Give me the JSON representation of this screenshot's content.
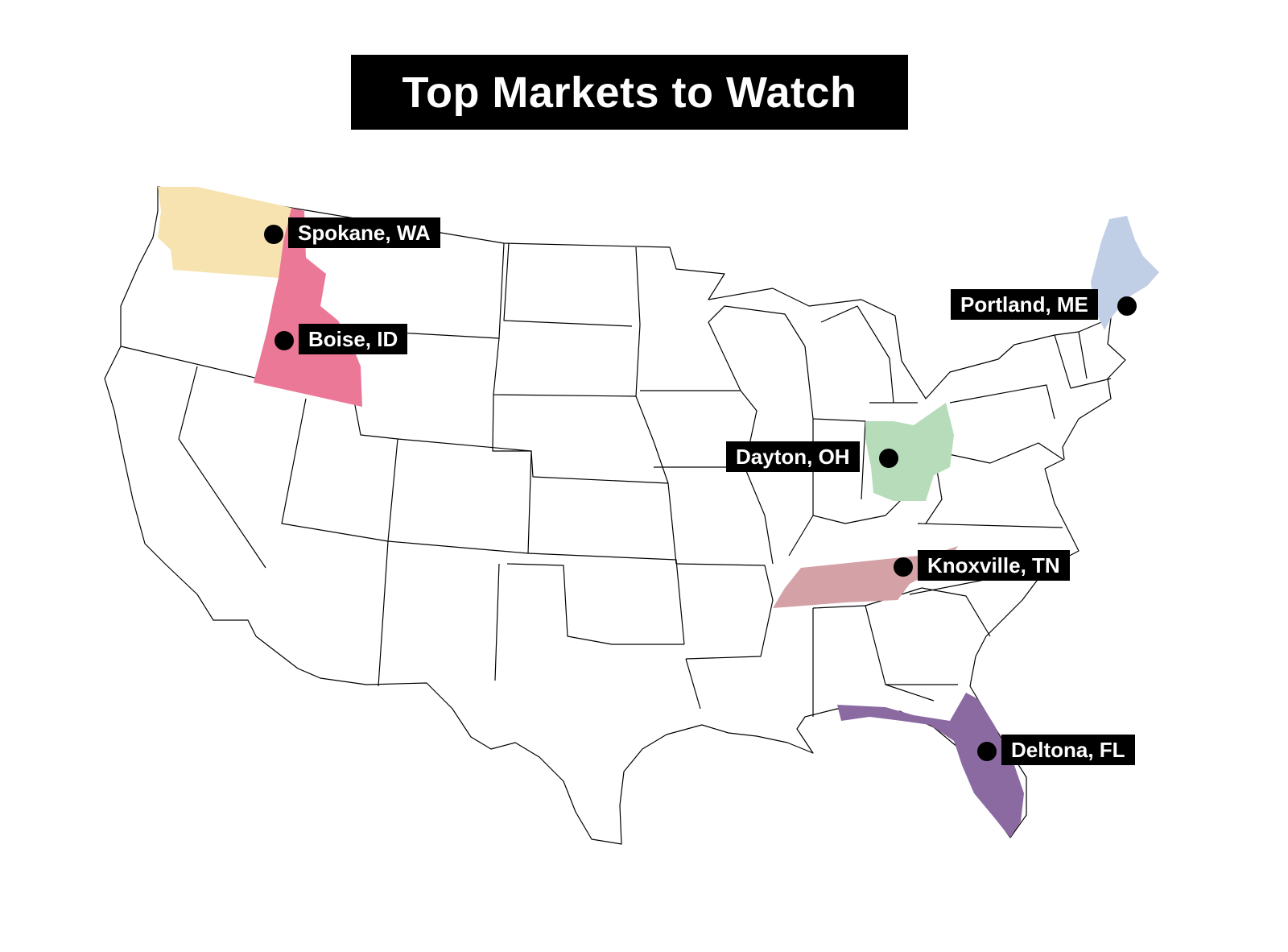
{
  "title": "Top Markets to Watch",
  "markets": [
    {
      "label": "Spokane, WA",
      "state": "Washington",
      "color": "#f7e3b0"
    },
    {
      "label": "Boise, ID",
      "state": "Idaho",
      "color": "#ec7898"
    },
    {
      "label": "Portland, ME",
      "state": "Maine",
      "color": "#c1cfe6"
    },
    {
      "label": "Dayton, OH",
      "state": "Ohio",
      "color": "#b6dcb9"
    },
    {
      "label": "Knoxville, TN",
      "state": "Tennessee",
      "color": "#d3a1a6"
    },
    {
      "label": "Deltona, FL",
      "state": "Florida",
      "color": "#8b6aa2"
    }
  ]
}
